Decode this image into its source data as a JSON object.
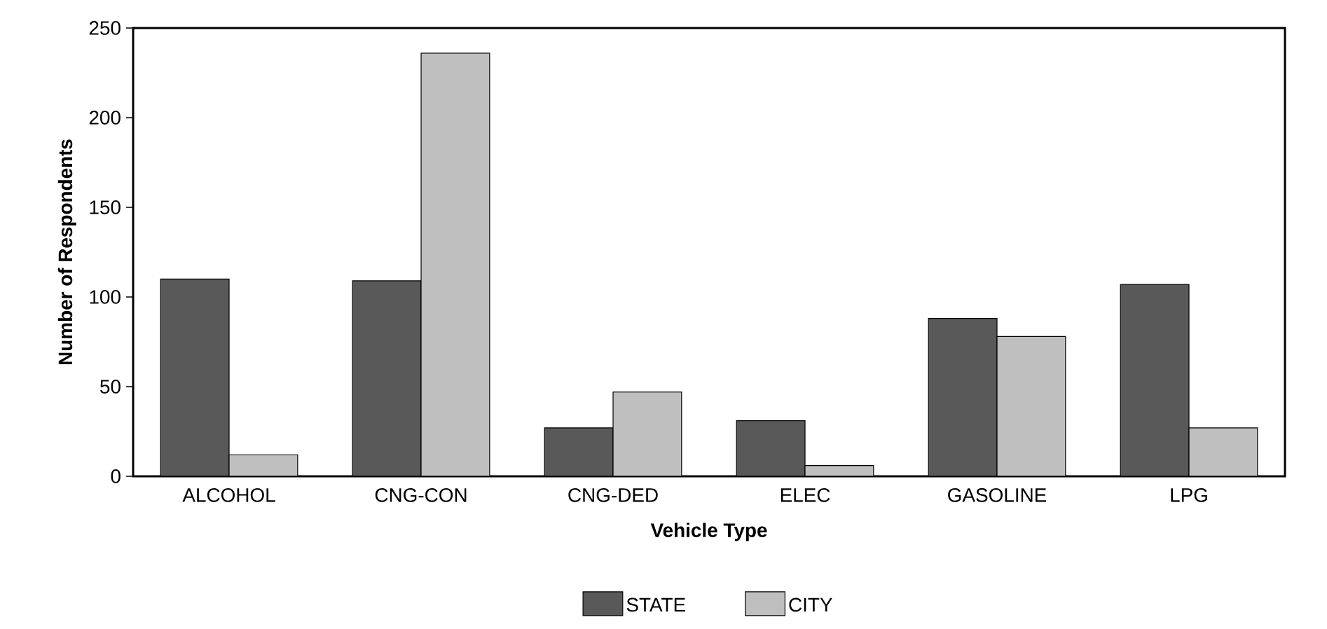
{
  "chart_data": {
    "type": "bar",
    "xlabel": "Vehicle Type",
    "ylabel": "Number of Respondents",
    "categories": [
      "ALCOHOL",
      "CNG-CON",
      "CNG-DED",
      "ELEC",
      "GASOLINE",
      "LPG"
    ],
    "series": [
      {
        "name": "STATE",
        "color": "#595959",
        "values": [
          110,
          109,
          27,
          31,
          88,
          107
        ]
      },
      {
        "name": "CITY",
        "color": "#bfbfbf",
        "values": [
          12,
          236,
          47,
          6,
          78,
          27
        ]
      }
    ],
    "ylim": [
      0,
      250
    ],
    "yticks": [
      0,
      50,
      100,
      150,
      200,
      250
    ],
    "legend": "bottom",
    "grid": false
  }
}
